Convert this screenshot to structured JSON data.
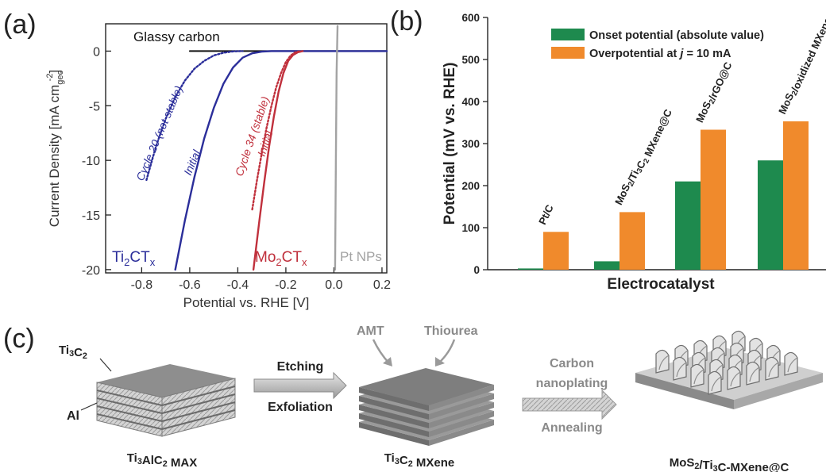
{
  "panel_labels": {
    "a": "(a)",
    "b": "(b)",
    "c": "(c)"
  },
  "colors": {
    "blue": "#2b2e9a",
    "red": "#c0303c",
    "gray": "#a3a3a3",
    "green": "#1e8a4e",
    "orange": "#f08a2c"
  },
  "chart_data": [
    {
      "type": "line",
      "xlabel": "Potential vs. RHE [V]",
      "ylabel": "Current Density [mA cm",
      "ylabel_sub": "geo",
      "ylabel_sup": "-2",
      "ylabel_end": "]",
      "xlim": [
        -0.95,
        0.22
      ],
      "ylim": [
        -20.3,
        2.5
      ],
      "xticks": [
        {
          "v": -0.8,
          "label": "-0.8"
        },
        {
          "v": -0.6,
          "label": "-0.6"
        },
        {
          "v": -0.4,
          "label": "-0.4"
        },
        {
          "v": -0.2,
          "label": "-0.2"
        },
        {
          "v": 0.0,
          "label": "0.0"
        },
        {
          "v": 0.2,
          "label": "0.2"
        }
      ],
      "yticks": [
        {
          "v": 0,
          "label": "0"
        },
        {
          "v": -5,
          "label": "-5"
        },
        {
          "v": -10,
          "label": "-10"
        },
        {
          "v": -15,
          "label": "-15"
        },
        {
          "v": -20,
          "label": "-20"
        }
      ],
      "series": [
        {
          "key": "glassy",
          "color": "#111111",
          "dash": false,
          "points": [
            [
              -0.6,
              0
            ],
            [
              0.22,
              0
            ]
          ]
        },
        {
          "key": "ti_initial",
          "color": "#2b2e9a",
          "dash": false,
          "points": [
            [
              -0.66,
              -20
            ],
            [
              -0.62,
              -15.5
            ],
            [
              -0.58,
              -11.5
            ],
            [
              -0.54,
              -8
            ],
            [
              -0.5,
              -5.2
            ],
            [
              -0.46,
              -3
            ],
            [
              -0.42,
              -1.5
            ],
            [
              -0.38,
              -0.6
            ],
            [
              -0.34,
              -0.2
            ],
            [
              -0.3,
              -0.05
            ],
            [
              -0.26,
              0
            ],
            [
              0.22,
              0
            ]
          ]
        },
        {
          "key": "ti_cycle20",
          "color": "#2b2e9a",
          "dash": true,
          "points": [
            [
              -0.78,
              -11.8
            ],
            [
              -0.74,
              -8.7
            ],
            [
              -0.7,
              -6.2
            ],
            [
              -0.66,
              -4.2
            ],
            [
              -0.62,
              -2.7
            ],
            [
              -0.58,
              -1.6
            ],
            [
              -0.54,
              -0.9
            ],
            [
              -0.5,
              -0.4
            ],
            [
              -0.46,
              -0.15
            ],
            [
              -0.42,
              -0.03
            ],
            [
              -0.38,
              0
            ]
          ]
        },
        {
          "key": "mo_initial",
          "color": "#c0303c",
          "dash": false,
          "points": [
            [
              -0.335,
              -20
            ],
            [
              -0.31,
              -15.5
            ],
            [
              -0.29,
              -12
            ],
            [
              -0.27,
              -8.8
            ],
            [
              -0.25,
              -6
            ],
            [
              -0.23,
              -3.7
            ],
            [
              -0.21,
              -2
            ],
            [
              -0.19,
              -0.9
            ],
            [
              -0.17,
              -0.35
            ],
            [
              -0.15,
              -0.1
            ],
            [
              -0.13,
              0
            ]
          ]
        },
        {
          "key": "mo_cycle34",
          "color": "#c0303c",
          "dash": true,
          "points": [
            [
              -0.34,
              -14.5
            ],
            [
              -0.32,
              -11.8
            ],
            [
              -0.3,
              -9.3
            ],
            [
              -0.28,
              -7
            ],
            [
              -0.26,
              -5
            ],
            [
              -0.24,
              -3.3
            ],
            [
              -0.22,
              -2
            ],
            [
              -0.2,
              -1
            ],
            [
              -0.18,
              -0.4
            ],
            [
              -0.16,
              -0.1
            ],
            [
              -0.14,
              0
            ]
          ]
        },
        {
          "key": "pt",
          "color": "#a3a3a3",
          "dash": false,
          "points": [
            [
              0.005,
              -20
            ],
            [
              0.008,
              -10
            ],
            [
              0.011,
              -2
            ],
            [
              0.015,
              2.3
            ]
          ]
        }
      ],
      "annotations": {
        "glassy": "Glassy carbon",
        "cycle20": "Cycle  20 (not stable)",
        "ti_initial": "Initial",
        "cycle34": "Cycle 34 (stable)",
        "mo_initial": "Initial",
        "pt": "Pt NPs"
      },
      "series_labels": {
        "ti": {
          "base": "Ti",
          "sub1": "2",
          "mid": "CT",
          "sub2": "x"
        },
        "mo": {
          "base": "Mo",
          "sub1": "2",
          "mid": "CT",
          "sub2": "x"
        }
      }
    },
    {
      "type": "bar",
      "xlabel": "Electrocatalyst",
      "ylabel": "Potential (mV vs. RHE)",
      "ylim": [
        0,
        600
      ],
      "yticks": [
        0,
        100,
        200,
        300,
        400,
        500,
        600
      ],
      "legend_position": "top-right",
      "categories": [
        {
          "parts": [
            [
              "Pt/C",
              ""
            ]
          ]
        },
        {
          "parts": [
            [
              "MoS",
              ""
            ],
            [
              "2",
              "sub"
            ],
            [
              "/Ti",
              ""
            ],
            [
              "3",
              "sub"
            ],
            [
              "C",
              ""
            ],
            [
              "2",
              "sub"
            ],
            [
              " MXene@C",
              ""
            ]
          ]
        },
        {
          "parts": [
            [
              "MoS",
              ""
            ],
            [
              "2",
              "sub"
            ],
            [
              "/rGO@C",
              ""
            ]
          ]
        },
        {
          "parts": [
            [
              "MoS",
              ""
            ],
            [
              "2",
              "sub"
            ],
            [
              "/oxidized MXene",
              ""
            ]
          ]
        }
      ],
      "series": [
        {
          "name": "Onset potential (absolute value)",
          "color": "#1e8a4e",
          "values": [
            3,
            20,
            210,
            260
          ]
        },
        {
          "name": "Overpotential at j = 10 mA",
          "name_parts": [
            [
              "Overpotential at ",
              ""
            ],
            [
              "j",
              "i"
            ],
            [
              " = 10 mA",
              ""
            ]
          ],
          "color": "#f08a2c",
          "values": [
            90,
            137,
            333,
            353
          ]
        }
      ]
    }
  ],
  "diagram": {
    "top_label": {
      "parts": [
        [
          "Ti",
          ""
        ],
        [
          "3",
          "sub"
        ],
        [
          "C",
          ""
        ],
        [
          "2",
          "sub"
        ]
      ]
    },
    "al_label": "Al",
    "max_label": {
      "parts": [
        [
          "Ti",
          ""
        ],
        [
          "3",
          "sub"
        ],
        [
          "AlC",
          ""
        ],
        [
          "2",
          "sub"
        ],
        [
          " MAX",
          ""
        ]
      ]
    },
    "etching": "Etching",
    "exfoliation": "Exfoliation",
    "amt": "AMT",
    "thiourea": "Thiourea",
    "mxene_label": {
      "parts": [
        [
          "Ti",
          ""
        ],
        [
          "3",
          "sub"
        ],
        [
          "C",
          ""
        ],
        [
          "2",
          "sub"
        ],
        [
          " MXene",
          ""
        ]
      ]
    },
    "carbon": "Carbon",
    "nanoplating": "nanoplating",
    "annealing": "Annealing",
    "final_label": {
      "parts": [
        [
          "MoS",
          ""
        ],
        [
          "2",
          "sub"
        ],
        [
          "/Ti",
          ""
        ],
        [
          "3",
          "sub"
        ],
        [
          "C-MXene@C",
          ""
        ]
      ]
    }
  }
}
